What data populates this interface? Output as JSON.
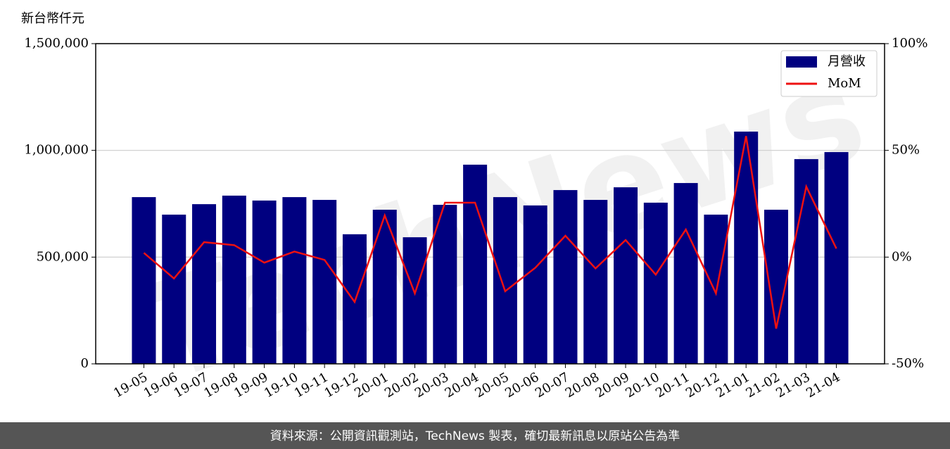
{
  "chart_data": {
    "type": "bar-line",
    "y_label": "新台幣仟元",
    "watermark": "TechNews",
    "footer": "資料來源：公開資訊觀測站，TechNews 製表，確切最新訊息以原站公告為準",
    "categories": [
      "19-05",
      "19-06",
      "19-07",
      "19-08",
      "19-09",
      "19-10",
      "19-11",
      "19-12",
      "20-01",
      "20-02",
      "20-03",
      "20-04",
      "20-05",
      "20-06",
      "20-07",
      "20-08",
      "20-09",
      "20-10",
      "20-11",
      "20-12",
      "21-01",
      "21-02",
      "21-03",
      "21-04"
    ],
    "series": [
      {
        "name": "月營收",
        "color": "#000080",
        "kind": "bar",
        "values": [
          781000,
          699000,
          748000,
          788000,
          765000,
          781000,
          768000,
          607000,
          722000,
          593000,
          745000,
          933000,
          781000,
          742000,
          814000,
          768000,
          827000,
          755000,
          847000,
          699000,
          1088000,
          722000,
          959000,
          992000
        ]
      },
      {
        "name": "MoM",
        "color": "#ee1111",
        "kind": "line",
        "axis": "y2",
        "values": [
          2,
          -10,
          7,
          5.6,
          -2.6,
          2.6,
          -1.3,
          -21,
          19.5,
          -17,
          25.5,
          25.5,
          -16,
          -5,
          10,
          -5.3,
          8,
          -8.2,
          12.9,
          -17,
          56.7,
          -33.5,
          33,
          4
        ]
      }
    ],
    "ylim": [
      0,
      1500000
    ],
    "yticks": [
      0,
      {
        "value": 500000,
        "label": "500,000"
      },
      {
        "value": 1000000,
        "label": "1,000,000"
      },
      {
        "value": 1500000,
        "label": "1,500,000"
      }
    ],
    "y2lim": [
      -50,
      100
    ],
    "y2ticks": [
      {
        "value": -50,
        "label": "-50%"
      },
      {
        "value": 0,
        "label": "0%"
      },
      {
        "value": 50,
        "label": "50%"
      },
      {
        "value": 100,
        "label": "100%"
      }
    ],
    "grid": true,
    "legend": "upper right"
  }
}
